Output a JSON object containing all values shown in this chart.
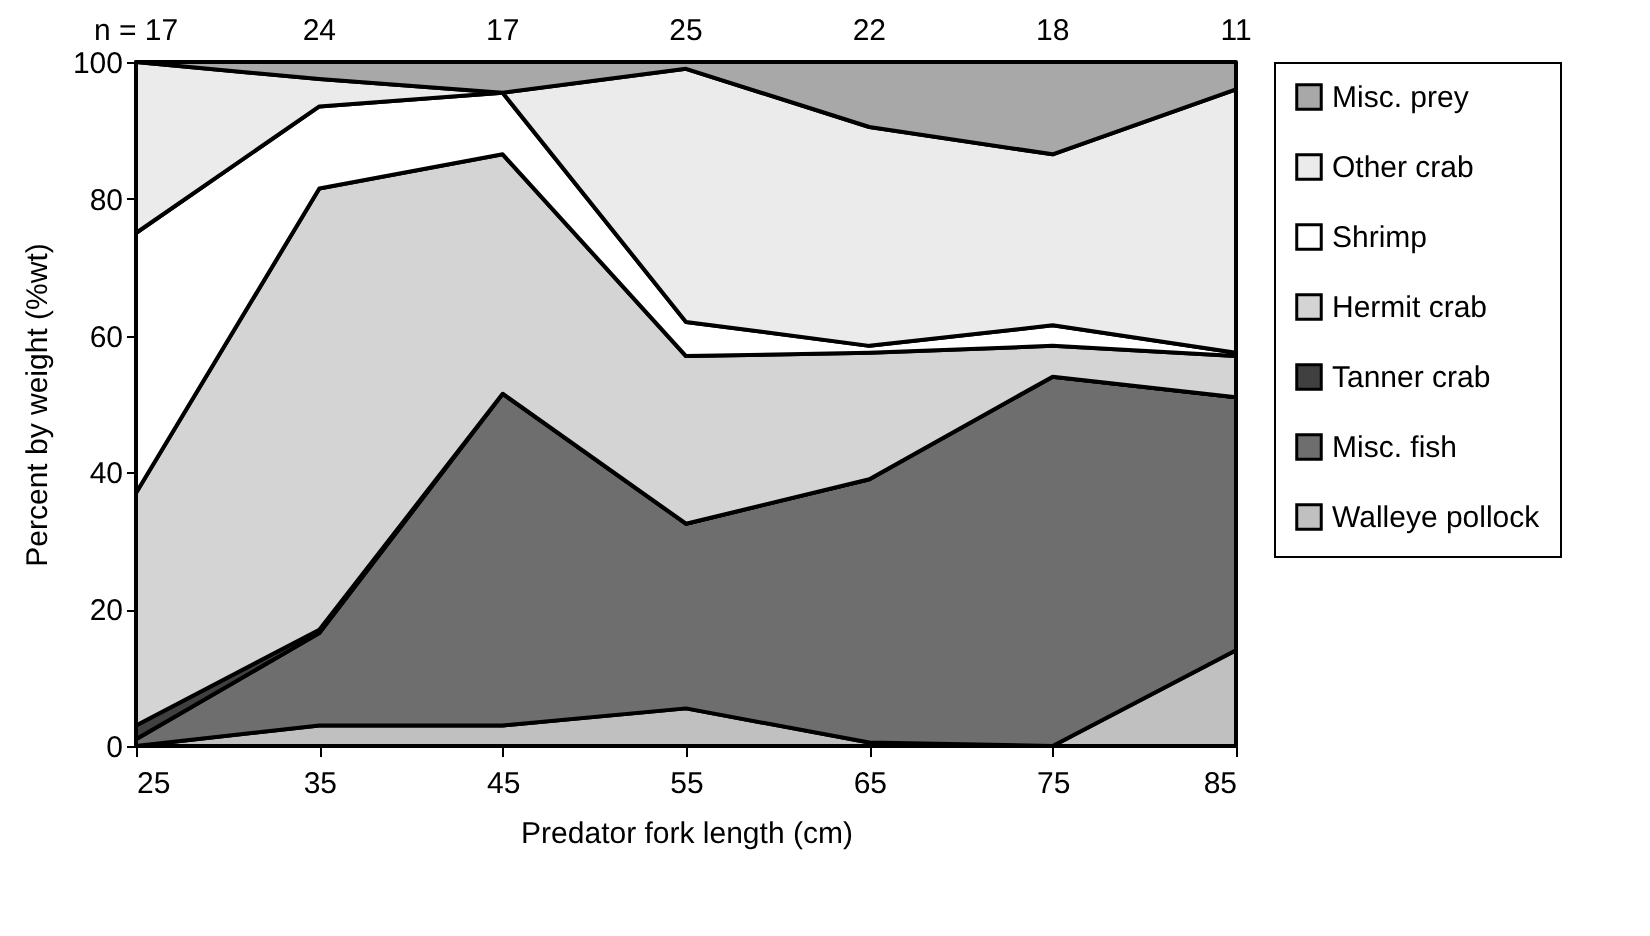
{
  "chart_data": {
    "type": "area",
    "stacked": true,
    "xlabel": "Predator fork length (cm)",
    "ylabel": "Percent by weight (%wt)",
    "x": [
      25,
      35,
      45,
      55,
      65,
      75,
      85
    ],
    "xlim": [
      25,
      85
    ],
    "xticks": [
      25,
      35,
      45,
      55,
      65,
      75,
      85
    ],
    "annotations": [
      "n = 17",
      "24",
      "17",
      "25",
      "22",
      "18",
      "11"
    ],
    "ylim": [
      0,
      100
    ],
    "yticks": [
      0,
      20,
      40,
      60,
      80,
      100
    ],
    "legend": "right",
    "series": [
      {
        "name": "Walleye pollock",
        "color": "#c0c0c0",
        "values": [
          0,
          3,
          3,
          5.5,
          0.5,
          0,
          14
        ]
      },
      {
        "name": "Misc. fish",
        "color": "#6e6e6e",
        "values": [
          1,
          13.5,
          48.5,
          27,
          38.5,
          54,
          37
        ]
      },
      {
        "name": "Tanner crab",
        "color": "#404040",
        "values": [
          2,
          0.5,
          0,
          0,
          0,
          0,
          0
        ]
      },
      {
        "name": "Hermit crab",
        "color": "#d4d4d4",
        "values": [
          34,
          64.5,
          35,
          24.5,
          18.5,
          4.5,
          6
        ]
      },
      {
        "name": "Shrimp",
        "color": "#ffffff",
        "values": [
          38,
          12,
          9,
          5,
          1,
          3,
          0.5
        ]
      },
      {
        "name": "Other crab",
        "color": "#ebebeb",
        "values": [
          25,
          4,
          0,
          37,
          32,
          25,
          38.5
        ]
      },
      {
        "name": "Misc. prey",
        "color": "#a8a8a8",
        "values": [
          0,
          2.5,
          4.5,
          1,
          9.5,
          13.5,
          4
        ]
      }
    ]
  }
}
